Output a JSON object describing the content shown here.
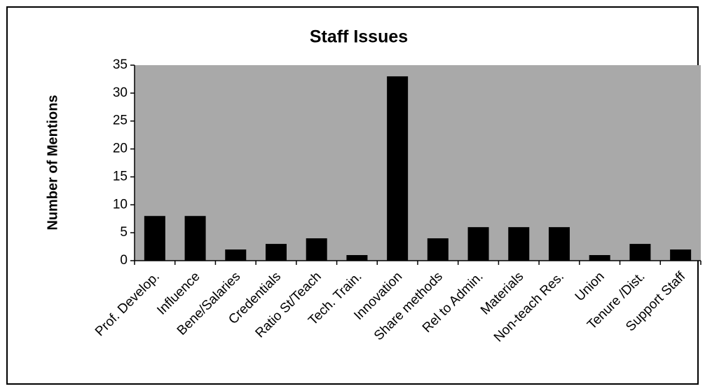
{
  "chart_data": {
    "type": "bar",
    "title": "Staff Issues",
    "y_label": "Number of Mentions",
    "categories": [
      "Prof. Develop.",
      "Influence",
      "Bene/Salaries",
      "Credentials",
      "Ratio St/Teach",
      "Tech. Train.",
      "Innovation",
      "Share methods",
      "Rel to Admin.",
      "Materials",
      "Non-teach Res.",
      "Union",
      "Tenure /Dist.",
      "Support Staff"
    ],
    "values": [
      8,
      8,
      2,
      3,
      4,
      1,
      33,
      4,
      6,
      6,
      6,
      1,
      3,
      2
    ],
    "color": "#000000",
    "ylim": [
      0,
      35
    ],
    "yticks": [
      0,
      5,
      10,
      15,
      20,
      25,
      30,
      35
    ],
    "grid": false
  }
}
